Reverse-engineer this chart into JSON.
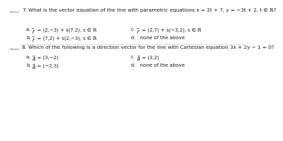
{
  "bg_color": "#ffffff",
  "text_color": "#1a1a1a",
  "sep_color": "#cccccc",
  "q7_blank": "____",
  "q7_num": "7.",
  "q7_q": "What is the vector equation of the line with parametric equations x = 2t + 7, y = −3t + 2, t ∈ ℝ?",
  "q7_a_label": "a.",
  "q7_a_vec": "$\\vec{r}$",
  "q7_a_rest": "= (2,−3) + s(7,2), s ∈ ℝ",
  "q7_b_label": "b.",
  "q7_b_vec": "$\\vec{r}$",
  "q7_b_rest": "= (7,2) + s(2,−3), s ∈ ℝ",
  "q7_c_label": "c.",
  "q7_c_vec": "$\\vec{r}$",
  "q7_c_rest": "= (2,7) + s(−3,2), s ∈ ℝ",
  "q7_d": "d.   none of the above",
  "q8_blank": "____",
  "q8_num": "8.",
  "q8_q": "Which of the following is a direction vector for the line with Cartesian equation 3x + 2y − 1 = 0?",
  "q8_a_label": "a.",
  "q8_a_vec": "$\\vec{a}$",
  "q8_a_rest": "= (3,−2)",
  "q8_b_label": "b.",
  "q8_b_vec": "$\\vec{a}$",
  "q8_b_rest": "= (−2,3)",
  "q8_c_label": "c.",
  "q8_c_vec": "$\\vec{a}$",
  "q8_c_rest": "= (3,2)",
  "q8_d": "d.   none of the above",
  "fs_main": 5.3,
  "fs_opt": 5.1,
  "fs_vec": 5.6
}
